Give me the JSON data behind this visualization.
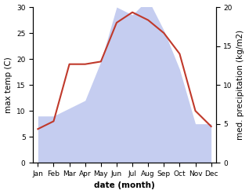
{
  "months": [
    "Jan",
    "Feb",
    "Mar",
    "Apr",
    "May",
    "Jun",
    "Jul",
    "Aug",
    "Sep",
    "Oct",
    "Nov",
    "Dec"
  ],
  "temperature": [
    6.5,
    8.0,
    19.0,
    19.0,
    19.5,
    27.0,
    29.0,
    27.5,
    25.0,
    21.0,
    10.0,
    7.0
  ],
  "precipitation": [
    6.0,
    6.0,
    7.0,
    8.0,
    13.0,
    20.0,
    19.0,
    21.0,
    17.0,
    12.0,
    5.0,
    5.0
  ],
  "temp_color": "#c0392b",
  "precip_fill_color": "#c5cdf0",
  "temp_ylim": [
    0,
    30
  ],
  "precip_ylim": [
    0,
    20
  ],
  "temp_yticks": [
    0,
    5,
    10,
    15,
    20,
    25,
    30
  ],
  "precip_yticks": [
    0,
    5,
    10,
    15,
    20
  ],
  "xlabel": "date (month)",
  "ylabel_left": "max temp (C)",
  "ylabel_right": "med. precipitation (kg/m2)",
  "background_color": "#ffffff",
  "label_fontsize": 7.5,
  "tick_fontsize": 6.5
}
